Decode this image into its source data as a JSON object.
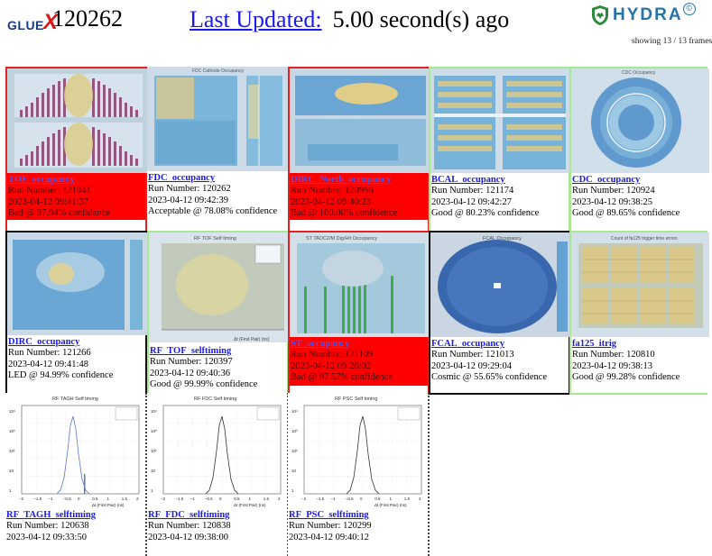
{
  "header": {
    "logo_left": "GLUE",
    "logo_x": "X",
    "run_number": "120262",
    "updated_label": "Last Updated:",
    "updated_value": "5.00 second(s) ago",
    "brand": "HYDRA",
    "showing": "showing 13 / 13 frames"
  },
  "colors": {
    "bad": "#ff0000",
    "link": "#1a1aee",
    "good_border": "#a8e890",
    "bad_border": "#e82020"
  },
  "tiles": [
    {
      "name": "TOF_occupancy",
      "run": "Run Number: 121041",
      "time": "2023-04-12 09:41:37",
      "status": "Bad @ 97.94% confidence"
    },
    {
      "name": "FDC_occupancy",
      "run": "Run Number: 120262",
      "time": "2023-04-12 09:42:39",
      "status": "Acceptable @ 78.08% confidence"
    },
    {
      "name": "DIRC_North_occupancy",
      "run": "Run Number: 120956",
      "time": "2023-04-12 09:40:23",
      "status": "Bad @ 100.00% confidence"
    },
    {
      "name": "BCAL_occupancy",
      "run": "Run Number: 121174",
      "time": "2023-04-12 09:42:27",
      "status": "Good @ 80.23% confidence"
    },
    {
      "name": "CDC_occupancy",
      "run": "Run Number: 120924",
      "time": "2023-04-12 09:38:25",
      "status": "Good @ 89.65% confidence"
    },
    {
      "name": "DIRC_occupancy",
      "run": "Run Number: 121266",
      "time": "2023-04-12 09:41:48",
      "status": "LED @ 94.99% confidence"
    },
    {
      "name": "RF_TOF_selftiming",
      "run": "Run Number: 120397",
      "time": "2023-04-12 09:40:36",
      "status": "Good @ 99.99% confidence"
    },
    {
      "name": "ST_occupancy",
      "run": "Run Number: 121109",
      "time": "2023-04-12 09:26:02",
      "status": "Bad @ 97.57% confidence"
    },
    {
      "name": "FCAL_occupancy",
      "run": "Run Number: 121013",
      "time": "2023-04-12 09:29:04",
      "status": "Cosmic @ 55.65% confidence"
    },
    {
      "name": "fa125_itrig",
      "run": "Run Number: 120810",
      "time": "2023-04-12 09:38:13",
      "status": "Good @ 99.28% confidence"
    },
    {
      "name": "RF_TAGH_selftiming",
      "run": "Run Number: 120638",
      "time": "2023-04-12 09:33:50",
      "status": ""
    },
    {
      "name": "RF_FDC_selftiming",
      "run": "Run Number: 120838",
      "time": "2023-04-12 09:38:00",
      "status": ""
    },
    {
      "name": "RF_PSC_selftiming",
      "run": "Run Number: 120299",
      "time": "2023-04-12 09:40:12",
      "status": ""
    }
  ],
  "plots": {
    "fdc_title": "FDC Cathode Occupancy",
    "cdc_title": "CDC Occupancy",
    "rf_tof_title": "RF TOF Self timing",
    "st_title": "ST TADC2/M Dig/Hit Occupancy",
    "fcal_title": "FCAL Occupancy",
    "fa125_title": "Count of fa125 trigger time errors",
    "rf_tagh_title": "RF TAGH Self timing",
    "rf_fdc_title": "RF FDC Self timing",
    "rf_psc_title": "RF PSC Self timing",
    "rf_xlabel": "Δt (First Pair) (ns)",
    "rf_ticks": [
      "−2",
      "−1.5",
      "−1",
      "−0.5",
      "0",
      "0.5",
      "1",
      "1.5",
      "2"
    ],
    "rf_yticks": [
      "10⁴",
      "10³",
      "10²",
      "10",
      "1"
    ]
  }
}
